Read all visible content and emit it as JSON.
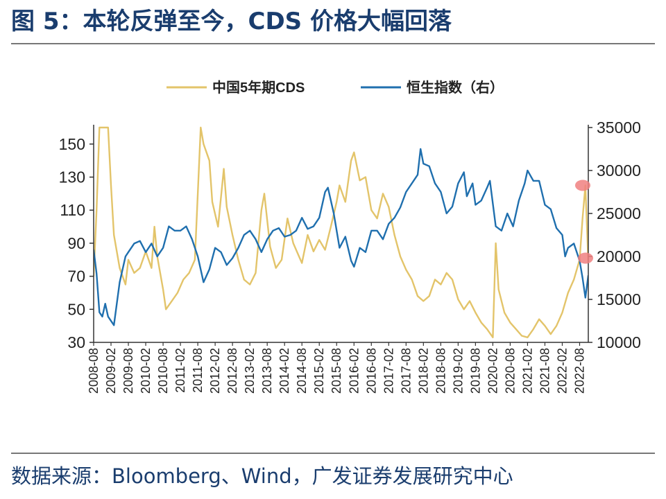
{
  "title": "图 5：本轮反弹至今，CDS 价格大幅回落",
  "source": "数据来源：Bloomberg、Wind，广发证券发展研究中心",
  "colors": {
    "cds": "#e3c46a",
    "hsi": "#1f6fae",
    "marker": "#f08080",
    "axis": "#333333",
    "title": "#1a3d6e"
  },
  "chart_data": {
    "type": "line",
    "title": "",
    "legend_position": "top-center",
    "grid": false,
    "x_ticks": [
      "2008-08",
      "2009-02",
      "2009-08",
      "2010-02",
      "2010-08",
      "2011-02",
      "2011-08",
      "2012-02",
      "2012-08",
      "2013-02",
      "2013-08",
      "2014-02",
      "2014-08",
      "2015-02",
      "2015-08",
      "2016-02",
      "2016-08",
      "2017-02",
      "2017-08",
      "2018-02",
      "2018-08",
      "2019-02",
      "2019-08",
      "2020-02",
      "2020-08",
      "2021-02",
      "2021-08",
      "2022-02",
      "2022-08"
    ],
    "x_range": [
      "2008-08",
      "2022-11"
    ],
    "y_left": {
      "range": [
        30,
        160
      ],
      "ticks": [
        30,
        50,
        70,
        90,
        110,
        130,
        150
      ]
    },
    "y_right": {
      "range": [
        10000,
        35000
      ],
      "ticks": [
        10000,
        15000,
        20000,
        25000,
        30000,
        35000
      ]
    },
    "series": [
      {
        "name": "中国5年期CDS",
        "axis": "left",
        "points": [
          [
            "2008-08",
            70
          ],
          [
            "2008-09",
            110
          ],
          [
            "2008-10",
            160
          ],
          [
            "2008-12",
            160
          ],
          [
            "2009-01",
            160
          ],
          [
            "2009-02",
            125
          ],
          [
            "2009-03",
            95
          ],
          [
            "2009-05",
            75
          ],
          [
            "2009-07",
            65
          ],
          [
            "2009-08",
            80
          ],
          [
            "2009-10",
            72
          ],
          [
            "2009-12",
            75
          ],
          [
            "2010-02",
            85
          ],
          [
            "2010-04",
            75
          ],
          [
            "2010-05",
            100
          ],
          [
            "2010-06",
            82
          ],
          [
            "2010-08",
            62
          ],
          [
            "2010-09",
            50
          ],
          [
            "2010-11",
            55
          ],
          [
            "2011-01",
            60
          ],
          [
            "2011-03",
            68
          ],
          [
            "2011-05",
            72
          ],
          [
            "2011-07",
            80
          ],
          [
            "2011-08",
            120
          ],
          [
            "2011-09",
            160
          ],
          [
            "2011-10",
            150
          ],
          [
            "2011-12",
            140
          ],
          [
            "2012-01",
            115
          ],
          [
            "2012-03",
            100
          ],
          [
            "2012-05",
            135
          ],
          [
            "2012-06",
            112
          ],
          [
            "2012-08",
            95
          ],
          [
            "2012-10",
            80
          ],
          [
            "2012-12",
            68
          ],
          [
            "2013-02",
            65
          ],
          [
            "2013-04",
            72
          ],
          [
            "2013-06",
            110
          ],
          [
            "2013-07",
            120
          ],
          [
            "2013-09",
            88
          ],
          [
            "2013-11",
            75
          ],
          [
            "2014-01",
            80
          ],
          [
            "2014-03",
            105
          ],
          [
            "2014-05",
            90
          ],
          [
            "2014-07",
            82
          ],
          [
            "2014-08",
            78
          ],
          [
            "2014-10",
            95
          ],
          [
            "2014-12",
            85
          ],
          [
            "2015-02",
            92
          ],
          [
            "2015-04",
            86
          ],
          [
            "2015-06",
            100
          ],
          [
            "2015-08",
            115
          ],
          [
            "2015-09",
            125
          ],
          [
            "2015-11",
            115
          ],
          [
            "2016-01",
            140
          ],
          [
            "2016-02",
            145
          ],
          [
            "2016-04",
            128
          ],
          [
            "2016-06",
            130
          ],
          [
            "2016-08",
            110
          ],
          [
            "2016-10",
            105
          ],
          [
            "2016-12",
            120
          ],
          [
            "2017-02",
            112
          ],
          [
            "2017-04",
            95
          ],
          [
            "2017-06",
            82
          ],
          [
            "2017-08",
            74
          ],
          [
            "2017-10",
            68
          ],
          [
            "2017-12",
            58
          ],
          [
            "2018-02",
            55
          ],
          [
            "2018-04",
            58
          ],
          [
            "2018-06",
            68
          ],
          [
            "2018-08",
            65
          ],
          [
            "2018-10",
            72
          ],
          [
            "2018-12",
            68
          ],
          [
            "2019-02",
            56
          ],
          [
            "2019-04",
            50
          ],
          [
            "2019-06",
            55
          ],
          [
            "2019-08",
            48
          ],
          [
            "2019-10",
            42
          ],
          [
            "2019-12",
            38
          ],
          [
            "2020-02",
            33
          ],
          [
            "2020-03",
            90
          ],
          [
            "2020-04",
            62
          ],
          [
            "2020-06",
            48
          ],
          [
            "2020-08",
            42
          ],
          [
            "2020-10",
            38
          ],
          [
            "2020-12",
            34
          ],
          [
            "2021-02",
            33
          ],
          [
            "2021-04",
            38
          ],
          [
            "2021-06",
            44
          ],
          [
            "2021-08",
            40
          ],
          [
            "2021-10",
            35
          ],
          [
            "2021-12",
            40
          ],
          [
            "2022-02",
            48
          ],
          [
            "2022-04",
            60
          ],
          [
            "2022-06",
            68
          ],
          [
            "2022-08",
            80
          ],
          [
            "2022-09",
            105
          ],
          [
            "2022-10",
            125
          ],
          [
            "2022-11",
            78
          ]
        ]
      },
      {
        "name": "恒生指数（右）",
        "axis": "right",
        "points": [
          [
            "2008-08",
            20800
          ],
          [
            "2008-09",
            18000
          ],
          [
            "2008-10",
            13500
          ],
          [
            "2008-11",
            13000
          ],
          [
            "2008-12",
            14500
          ],
          [
            "2009-01",
            13000
          ],
          [
            "2009-03",
            12000
          ],
          [
            "2009-05",
            17000
          ],
          [
            "2009-07",
            20000
          ],
          [
            "2009-08",
            20500
          ],
          [
            "2009-10",
            21500
          ],
          [
            "2009-12",
            21800
          ],
          [
            "2010-02",
            20500
          ],
          [
            "2010-04",
            21500
          ],
          [
            "2010-06",
            20000
          ],
          [
            "2010-08",
            21000
          ],
          [
            "2010-10",
            23500
          ],
          [
            "2010-12",
            23000
          ],
          [
            "2011-02",
            23000
          ],
          [
            "2011-04",
            23500
          ],
          [
            "2011-06",
            22000
          ],
          [
            "2011-08",
            20000
          ],
          [
            "2011-10",
            17000
          ],
          [
            "2011-12",
            18500
          ],
          [
            "2012-02",
            21000
          ],
          [
            "2012-04",
            20500
          ],
          [
            "2012-06",
            19000
          ],
          [
            "2012-08",
            19800
          ],
          [
            "2012-10",
            21000
          ],
          [
            "2012-12",
            22500
          ],
          [
            "2013-02",
            23000
          ],
          [
            "2013-04",
            22000
          ],
          [
            "2013-06",
            20500
          ],
          [
            "2013-08",
            22000
          ],
          [
            "2013-10",
            23000
          ],
          [
            "2013-12",
            23300
          ],
          [
            "2014-02",
            22300
          ],
          [
            "2014-04",
            22500
          ],
          [
            "2014-06",
            23000
          ],
          [
            "2014-08",
            24500
          ],
          [
            "2014-10",
            23200
          ],
          [
            "2014-12",
            23500
          ],
          [
            "2015-02",
            24500
          ],
          [
            "2015-04",
            27500
          ],
          [
            "2015-05",
            28000
          ],
          [
            "2015-07",
            25000
          ],
          [
            "2015-09",
            21000
          ],
          [
            "2015-11",
            22300
          ],
          [
            "2016-01",
            19500
          ],
          [
            "2016-02",
            18800
          ],
          [
            "2016-04",
            21000
          ],
          [
            "2016-06",
            20500
          ],
          [
            "2016-08",
            23000
          ],
          [
            "2016-10",
            23000
          ],
          [
            "2016-12",
            22000
          ],
          [
            "2017-02",
            23800
          ],
          [
            "2017-04",
            24500
          ],
          [
            "2017-06",
            25700
          ],
          [
            "2017-08",
            27500
          ],
          [
            "2017-10",
            28500
          ],
          [
            "2017-12",
            29500
          ],
          [
            "2018-01",
            32500
          ],
          [
            "2018-02",
            30800
          ],
          [
            "2018-04",
            30500
          ],
          [
            "2018-06",
            28500
          ],
          [
            "2018-08",
            27500
          ],
          [
            "2018-10",
            25000
          ],
          [
            "2018-12",
            25800
          ],
          [
            "2019-02",
            28500
          ],
          [
            "2019-04",
            29800
          ],
          [
            "2019-05",
            27000
          ],
          [
            "2019-07",
            28500
          ],
          [
            "2019-08",
            26000
          ],
          [
            "2019-10",
            26500
          ],
          [
            "2019-12",
            28000
          ],
          [
            "2020-01",
            28800
          ],
          [
            "2020-03",
            23500
          ],
          [
            "2020-05",
            23000
          ],
          [
            "2020-07",
            25000
          ],
          [
            "2020-09",
            23500
          ],
          [
            "2020-11",
            26500
          ],
          [
            "2021-01",
            28500
          ],
          [
            "2021-02",
            30000
          ],
          [
            "2021-04",
            28800
          ],
          [
            "2021-06",
            28800
          ],
          [
            "2021-08",
            26000
          ],
          [
            "2021-10",
            25500
          ],
          [
            "2021-12",
            23300
          ],
          [
            "2022-02",
            22500
          ],
          [
            "2022-03",
            20000
          ],
          [
            "2022-04",
            21000
          ],
          [
            "2022-06",
            21500
          ],
          [
            "2022-08",
            19500
          ],
          [
            "2022-09",
            17500
          ],
          [
            "2022-10",
            15200
          ],
          [
            "2022-11",
            17800
          ]
        ]
      }
    ]
  }
}
